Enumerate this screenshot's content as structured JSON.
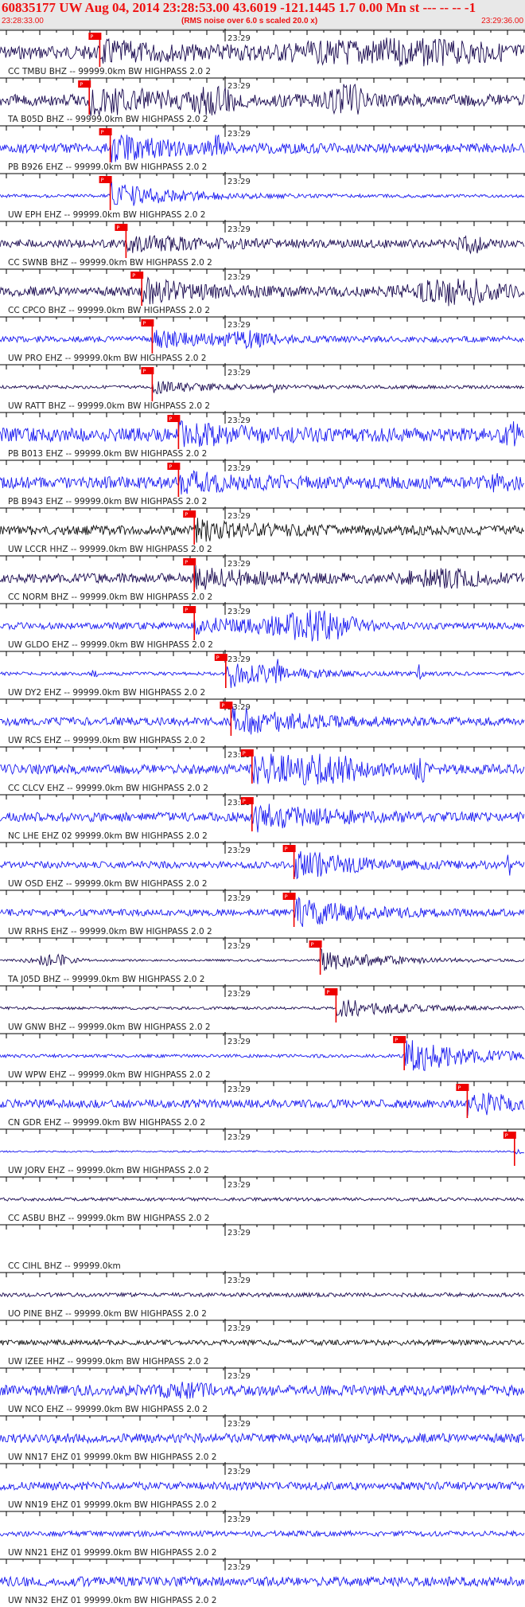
{
  "header": {
    "title": "60835177 UW Aug 04, 2014 23:28:53.00   43.6019 -121.1445  1.7 0.00 Mn st --- -- --  -1",
    "start_time": "23:28:33.00",
    "rms_note": "(RMS noise over 6.0 s scaled 20.0 x)",
    "end_time": "23:29:36.00"
  },
  "minute_label": "23:29",
  "pick_label": "P",
  "colors": {
    "accent": "#ee1111",
    "pick": "#ee0000",
    "trace_blue": "#1a1af0",
    "trace_navy": "#1a0a50",
    "trace_black": "#111111"
  },
  "traces": [
    {
      "label": "CC TMBU BHZ -- 99999.0km BW  HIGHPASS  2.0  2",
      "color": "navy",
      "pick": 0.19,
      "amp": 0.5,
      "burst": 0.45,
      "bursts": [
        [
          0.75,
          0.2,
          0.6
        ]
      ]
    },
    {
      "label": "TA B05D BHZ -- 99999.0km BW  HIGHPASS  2.0  2",
      "color": "navy",
      "pick": 0.17,
      "amp": 0.45,
      "burst": 0.8,
      "bursts": [
        [
          0.66,
          0.03,
          1.0
        ],
        [
          0.4,
          0.05,
          0.6
        ]
      ]
    },
    {
      "label": "PB B926 EHZ -- 99999.0km BW  HIGHPASS  2.0  2",
      "color": "blue",
      "pick": 0.21,
      "amp": 0.35,
      "burst": 0.6,
      "bursts": [
        [
          0.41,
          0.01,
          0.8
        ]
      ]
    },
    {
      "label": "UW EPH EHZ -- 99999.0km BW  HIGHPASS  2.0  2",
      "color": "blue",
      "pick": 0.21,
      "amp": 0.12,
      "burst": 0.7,
      "bursts": []
    },
    {
      "label": "CC SWNB BHZ -- 99999.0km BW  HIGHPASS  2.0  2",
      "color": "navy",
      "pick": 0.24,
      "amp": 0.3,
      "burst": 0.45,
      "bursts": [
        [
          0.9,
          0.03,
          0.5
        ]
      ]
    },
    {
      "label": "CC CPCO BHZ -- 99999.0km BW  HIGHPASS  2.0  2",
      "color": "navy",
      "pick": 0.27,
      "amp": 0.35,
      "burst": 0.55,
      "bursts": [
        [
          0.87,
          0.08,
          0.8
        ]
      ]
    },
    {
      "label": "UW PRO EHZ -- 99999.0km BW  HIGHPASS  2.0  2",
      "color": "blue",
      "pick": 0.29,
      "amp": 0.22,
      "burst": 0.4,
      "bursts": [
        [
          0.48,
          0.05,
          0.35
        ]
      ]
    },
    {
      "label": "UW RATT BHZ -- 99999.0km BW  HIGHPASS  2.0  2",
      "color": "navy",
      "pick": 0.29,
      "amp": 0.12,
      "burst": 0.3,
      "bursts": [
        [
          0.52,
          0.004,
          0.4
        ]
      ]
    },
    {
      "label": "PB B013 EHZ -- 99999.0km BW  HIGHPASS  2.0  2",
      "color": "blue",
      "pick": 0.34,
      "amp": 0.5,
      "burst": 0.45,
      "bursts": [
        [
          0.98,
          0.02,
          0.6
        ]
      ]
    },
    {
      "label": "PB B943 EHZ -- 99999.0km BW  HIGHPASS  2.0  2",
      "color": "blue",
      "pick": 0.34,
      "amp": 0.45,
      "burst": 0.4,
      "bursts": [
        [
          0.95,
          0.03,
          0.4
        ]
      ]
    },
    {
      "label": "UW LCCR HHZ -- 99999.0km BW  HIGHPASS  2.0  2",
      "color": "black",
      "pick": 0.37,
      "amp": 0.35,
      "burst": 0.45,
      "bursts": []
    },
    {
      "label": "CC NORM BHZ -- 99999.0km BW  HIGHPASS  2.0  2",
      "color": "navy",
      "pick": 0.37,
      "amp": 0.35,
      "burst": 0.45,
      "bursts": [
        [
          0.85,
          0.08,
          0.45
        ]
      ]
    },
    {
      "label": "UW GLDO EHZ -- 99999.0km BW  HIGHPASS  2.0  2",
      "color": "blue",
      "pick": 0.37,
      "amp": 0.25,
      "burst": 0.4,
      "bursts": [
        [
          0.6,
          0.08,
          1.0
        ]
      ]
    },
    {
      "label": "UW DY2 EHZ -- 99999.0km BW  HIGHPASS  2.0  2",
      "color": "blue",
      "pick": 0.43,
      "amp": 0.12,
      "burst": 0.75,
      "bursts": [
        [
          0.18,
          0.004,
          0.6
        ],
        [
          0.53,
          0.004,
          0.8
        ],
        [
          0.8,
          0.004,
          0.7
        ]
      ]
    },
    {
      "label": "UW RCS EHZ -- 99999.0km BW  HIGHPASS  2.0  2",
      "color": "blue",
      "pick": 0.44,
      "amp": 0.3,
      "burst": 0.75,
      "bursts": []
    },
    {
      "label": "CC CLCV EHZ -- 99999.0km BW  HIGHPASS  2.0  2",
      "color": "blue",
      "pick": 0.48,
      "amp": 0.35,
      "burst": 0.8,
      "bursts": [
        [
          0.62,
          0.06,
          0.75
        ],
        [
          0.8,
          0.01,
          0.9
        ]
      ]
    },
    {
      "label": "NC LHE EHZ 02 99999.0km BW  HIGHPASS  2.0  2",
      "color": "blue",
      "pick": 0.48,
      "amp": 0.35,
      "burst": 0.7,
      "bursts": []
    },
    {
      "label": "UW OSD EHZ -- 99999.0km BW  HIGHPASS  2.0  2",
      "color": "blue",
      "pick": 0.56,
      "amp": 0.25,
      "burst": 0.75,
      "bursts": [
        [
          0.97,
          0.004,
          0.9
        ]
      ]
    },
    {
      "label": "UW RRHS EHZ -- 99999.0km BW  HIGHPASS  2.0  2",
      "color": "blue",
      "pick": 0.56,
      "amp": 0.25,
      "burst": 0.7,
      "bursts": []
    },
    {
      "label": "TA J05D BHZ -- 99999.0km BW  HIGHPASS  2.0  2",
      "color": "navy",
      "pick": 0.61,
      "amp": 0.08,
      "burst": 0.6,
      "bursts": [
        [
          0.1,
          0.04,
          0.4
        ]
      ]
    },
    {
      "label": "UW GNW BHZ -- 99999.0km BW  HIGHPASS  2.0  2",
      "color": "navy",
      "pick": 0.64,
      "amp": 0.1,
      "burst": 0.5,
      "bursts": []
    },
    {
      "label": "UW WPW EHZ -- 99999.0km BW  HIGHPASS  2.0  2",
      "color": "blue",
      "pick": 0.77,
      "amp": 0.12,
      "burst": 1.0,
      "bursts": []
    },
    {
      "label": "CN GDR EHZ -- 99999.0km BW  HIGHPASS  2.0  2",
      "color": "blue",
      "pick": 0.89,
      "amp": 0.3,
      "burst": 0.55,
      "bursts": []
    },
    {
      "label": "UW JORV EHZ -- 99999.0km BW  HIGHPASS  2.0  2",
      "color": "blue",
      "pick": 0.98,
      "amp": 0.06,
      "burst": 0.1,
      "bursts": []
    },
    {
      "label": "CC ASBU BHZ -- 99999.0km BW  HIGHPASS  2.0  2",
      "color": "navy",
      "pick": null,
      "amp": 0.12,
      "burst": 0,
      "bursts": []
    },
    {
      "label": "CC CIHL BHZ -- 99999.0km",
      "color": "none",
      "pick": null,
      "amp": 0,
      "burst": 0,
      "bursts": []
    },
    {
      "label": "UO PINE BHZ -- 99999.0km BW  HIGHPASS  2.0  2",
      "color": "navy",
      "pick": null,
      "amp": 0.15,
      "burst": 0,
      "bursts": []
    },
    {
      "label": "UW IZEE HHZ -- 99999.0km BW  HIGHPASS  2.0  2",
      "color": "black",
      "pick": null,
      "amp": 0.2,
      "burst": 0,
      "bursts": []
    },
    {
      "label": "UW NCO EHZ -- 99999.0km BW  HIGHPASS  2.0  2",
      "color": "blue",
      "pick": null,
      "amp": 0.4,
      "burst": 0,
      "bursts": [
        [
          0.35,
          0.05,
          0.3
        ]
      ]
    },
    {
      "label": "UW NN17 EHZ 01 99999.0km BW  HIGHPASS  2.0  2",
      "color": "blue",
      "pick": null,
      "amp": 0.35,
      "burst": 0,
      "bursts": []
    },
    {
      "label": "UW NN19 EHZ 01 99999.0km BW  HIGHPASS  2.0  2",
      "color": "blue",
      "pick": null,
      "amp": 0.3,
      "burst": 0,
      "bursts": []
    },
    {
      "label": "UW NN21 EHZ 01 99999.0km BW  HIGHPASS  2.0  2",
      "color": "blue",
      "pick": null,
      "amp": 0.2,
      "burst": 0,
      "bursts": []
    },
    {
      "label": "UW NN32 EHZ 01 99999.0km BW  HIGHPASS  2.0  2",
      "color": "blue",
      "pick": null,
      "amp": 0.35,
      "burst": 0,
      "bursts": []
    }
  ]
}
